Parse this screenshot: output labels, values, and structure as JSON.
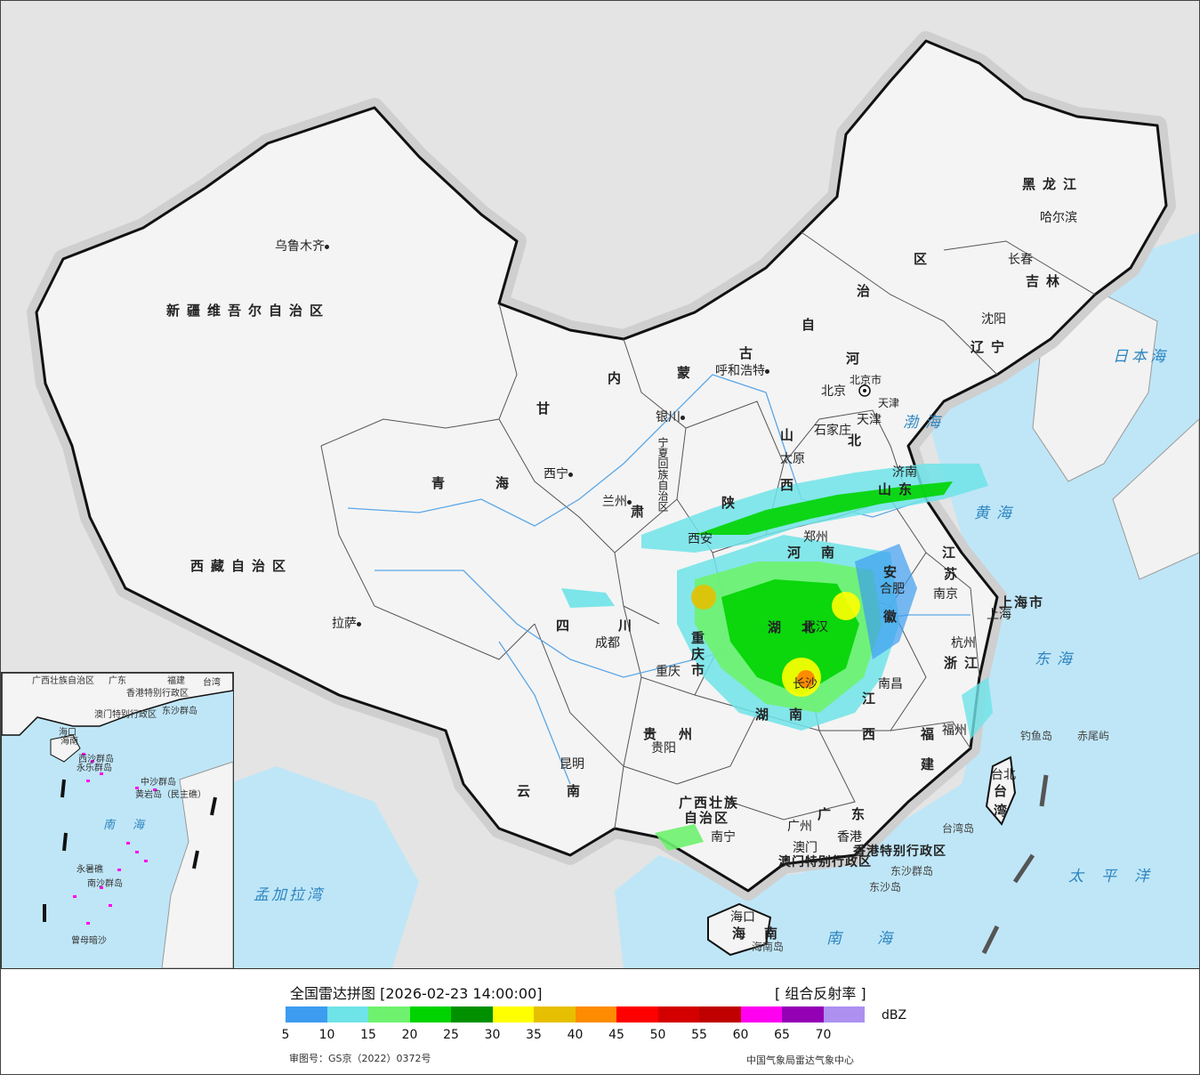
{
  "legend": {
    "title": "全国雷达拼图 [2026-02-23 14:00:00]",
    "product": "[ 组合反射率 ]",
    "unit": "dBZ",
    "review_number": "审图号：GS京（2022）0372号",
    "credit": "中国气象局雷达气象中心",
    "ticks": [
      "5",
      "10",
      "15",
      "20",
      "25",
      "30",
      "35",
      "40",
      "45",
      "50",
      "55",
      "60",
      "65",
      "70"
    ],
    "colors": [
      "#3d9cf0",
      "#6ee3e8",
      "#6ef26e",
      "#00d400",
      "#009000",
      "#ffff00",
      "#e6c000",
      "#ff8c00",
      "#ff0000",
      "#d40000",
      "#c00000",
      "#ff00f0",
      "#9400b4",
      "#ad90f0"
    ]
  },
  "cities": [
    {
      "name": "乌鲁木齐"
    },
    {
      "name": "拉萨"
    },
    {
      "name": "西宁"
    },
    {
      "name": "兰州"
    },
    {
      "name": "银川"
    },
    {
      "name": "呼和浩特"
    },
    {
      "name": "北京"
    },
    {
      "name": "天津"
    },
    {
      "name": "石家庄"
    },
    {
      "name": "太原"
    },
    {
      "name": "西安"
    },
    {
      "name": "郑州"
    },
    {
      "name": "济南"
    },
    {
      "name": "南京"
    },
    {
      "name": "合肥"
    },
    {
      "name": "上海"
    },
    {
      "name": "杭州"
    },
    {
      "name": "武汉"
    },
    {
      "name": "南昌"
    },
    {
      "name": "长沙"
    },
    {
      "name": "福州"
    },
    {
      "name": "台北"
    },
    {
      "name": "广州"
    },
    {
      "name": "香港"
    },
    {
      "name": "澳门"
    },
    {
      "name": "南宁"
    },
    {
      "name": "海口"
    },
    {
      "name": "贵阳"
    },
    {
      "name": "昆明"
    },
    {
      "name": "成都"
    },
    {
      "name": "重庆"
    },
    {
      "name": "沈阳"
    },
    {
      "name": "长春"
    },
    {
      "name": "哈尔滨"
    }
  ],
  "provinces": {
    "xinjiang": "新疆维吾尔自治区",
    "xizang": "西藏自治区",
    "qinghai_a": "青",
    "qinghai_b": "海",
    "gansu": "甘",
    "sichuan_a": "四",
    "sichuan_b": "川",
    "yunnan_a": "云",
    "yunnan_b": "南",
    "guizhou_a": "贵",
    "guizhou_b": "州",
    "guangxi_a": "广西壮族",
    "guangxi_b": "自治区",
    "guangdong_a": "广",
    "guangdong_b": "东",
    "hunan_a": "湖",
    "hunan_b": "南",
    "hubei_a": "湖",
    "hubei_b": "北",
    "jiangxi_a": "江",
    "jiangxi_b": "西",
    "fujian_a": "福",
    "fujian_b": "建",
    "zhejiang": "浙江",
    "jiangsu_a": "江",
    "jiangsu_b": "苏",
    "anhui_a": "安",
    "anhui_b": "徽",
    "shandong": "山东",
    "henan_a": "河",
    "henan_b": "南",
    "shaanxi": "陕",
    "shanxi_a": "山",
    "shanxi_b": "西",
    "hebei_a": "河",
    "hebei_b": "北",
    "neimenggu_a": "内",
    "neimenggu_b": "蒙",
    "neimenggu_c": "古",
    "neimenggu_d": "自",
    "neimenggu_e": "治",
    "neimenggu_f": "区",
    "heilongjiang": "黑龙江",
    "jilin": "吉林",
    "liaoning": "辽宁",
    "chongqing_a": "重",
    "chongqing_b": "庆",
    "chongqing_c": "市",
    "shanghai": "上海市",
    "tianjin": "天津",
    "beijing_shi": "北京市",
    "ningxia": "宁夏回族自治区",
    "gansu_b": "肃",
    "hainan_a": "海",
    "hainan_b": "南",
    "taiwan_a": "台",
    "taiwan_b": "湾",
    "xianggang_sar": "香港特别行政区",
    "aomen_sar": "澳门特别行政区"
  },
  "seas": {
    "bohai": "渤海",
    "huanghai": "黄海",
    "donghai": "东海",
    "nanhai": "南海",
    "ribenhai": "日本海",
    "taipingyang": "太平洋",
    "mengjiala": "孟加拉湾"
  },
  "islands": {
    "diaoyu": "钓鱼岛",
    "chiwei": "赤尾屿",
    "taiwan_island": "台湾岛",
    "dongsha_qundao": "东沙群岛",
    "dongsha_dao": "东沙岛",
    "hainan_dao": "海南岛"
  },
  "inset": {
    "guangxi": "广西壮族自治区",
    "guangdong": "广东",
    "fujian": "福建",
    "taiwan": "台湾",
    "hk": "香港特别行政区",
    "macao": "澳门特别行政区",
    "dongsha": "东沙群岛",
    "haikou": "海口",
    "hainan": "海南",
    "xisha": "西沙群岛",
    "yongle": "永乐群岛",
    "zhongsha": "中沙群岛",
    "huangyan": "黄岩岛（民主礁）",
    "nanhai": "南海",
    "yongshu": "永暑礁",
    "nansha": "南沙群岛",
    "zengmu": "曾母暗沙"
  }
}
